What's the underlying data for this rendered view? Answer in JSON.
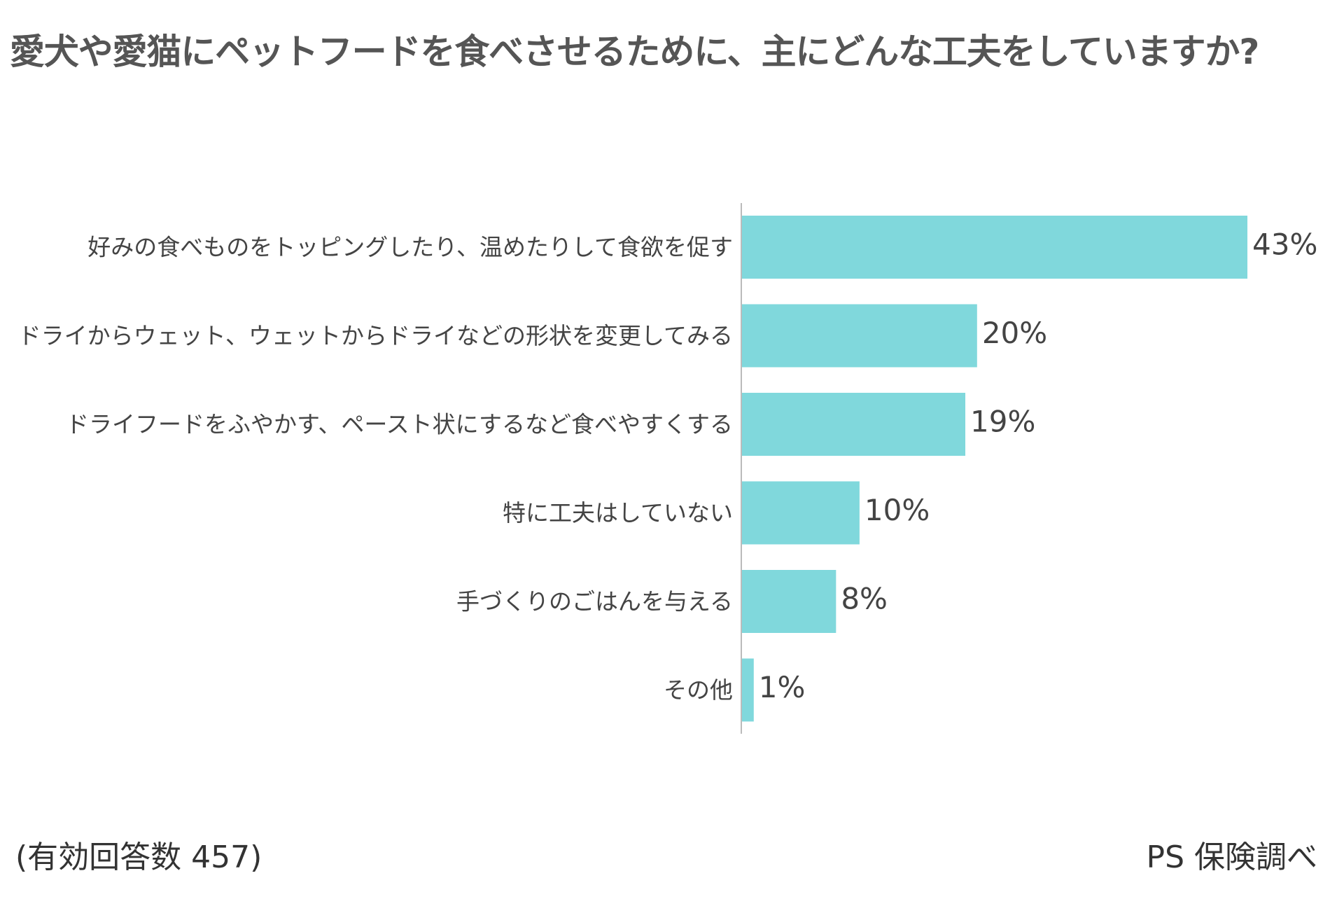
{
  "chart_data": {
    "type": "bar",
    "orientation": "horizontal",
    "title": "愛犬や愛猫にペットフードを食べさせるために、主にどんな工夫をしていますか?",
    "categories": [
      "好みの食べものをトッピングしたり、温めたりして食欲を促す",
      "ドライからウェット、ウェットからドライなどの形状を変更してみる",
      "ドライフードをふやかす、ペースト状にするなど食べやすくする",
      "特に工夫はしていない",
      "手づくりのごはんを与える",
      "その他"
    ],
    "values": [
      43,
      20,
      19,
      10,
      8,
      1
    ],
    "value_labels": [
      "43%",
      "20%",
      "19%",
      "10%",
      "8%",
      "1%"
    ],
    "unit": "%",
    "xlim": [
      0,
      43
    ],
    "grid": false,
    "bar_color": "#80d8dc",
    "axis_color": "#bbbbbb"
  },
  "footer": {
    "sample_note": "(有効回答数 457)",
    "source": "PS 保険調べ"
  }
}
